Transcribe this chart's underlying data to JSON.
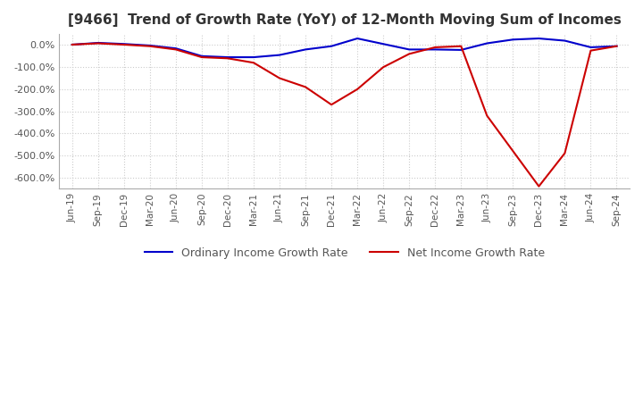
{
  "title": "[9466]  Trend of Growth Rate (YoY) of 12-Month Moving Sum of Incomes",
  "title_fontsize": 11,
  "ylim": [
    -650,
    50
  ],
  "yticks": [
    0,
    -100,
    -200,
    -300,
    -400,
    -500,
    -600
  ],
  "background_color": "#ffffff",
  "grid_color": "#cccccc",
  "grid_style": "dotted",
  "legend_labels": [
    "Ordinary Income Growth Rate",
    "Net Income Growth Rate"
  ],
  "legend_colors": [
    "#0000cc",
    "#cc0000"
  ],
  "x_labels": [
    "Jun-19",
    "Sep-19",
    "Dec-19",
    "Mar-20",
    "Jun-20",
    "Sep-20",
    "Dec-20",
    "Mar-21",
    "Jun-21",
    "Sep-21",
    "Dec-21",
    "Mar-22",
    "Jun-22",
    "Sep-22",
    "Dec-22",
    "Mar-23",
    "Jun-23",
    "Sep-23",
    "Dec-23",
    "Mar-24",
    "Jun-24",
    "Sep-24"
  ],
  "ordinary_income_growth_rate": [
    2,
    10,
    5,
    -2,
    -15,
    -50,
    -55,
    -55,
    -45,
    -20,
    -5,
    30,
    5,
    -20,
    -20,
    -22,
    8,
    25,
    30,
    20,
    -10,
    -5
  ],
  "net_income_growth_rate": [
    2,
    8,
    2,
    -5,
    -20,
    -55,
    -60,
    -80,
    -150,
    -190,
    -270,
    -200,
    -100,
    -40,
    -10,
    -5,
    -320,
    -480,
    -640,
    -490,
    -25,
    -5
  ]
}
